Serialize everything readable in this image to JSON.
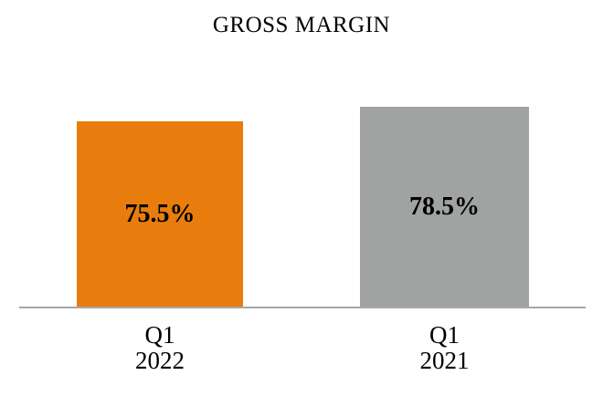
{
  "page": {
    "background": "#FFFFFF"
  },
  "chart_data": {
    "type": "bar",
    "title": "GROSS MARGIN",
    "categories": [
      "Q1 2022",
      "Q1 2021"
    ],
    "values": [
      75.5,
      78.5
    ],
    "value_labels": [
      "75.5%",
      "78.5%"
    ],
    "bars": [
      {
        "period": "Q1",
        "year": "2022",
        "value": 75.5,
        "label": "75.5%",
        "color": "#E87D0E"
      },
      {
        "period": "Q1",
        "year": "2021",
        "value": 78.5,
        "label": "78.5%",
        "color": "#A1A3A3"
      }
    ],
    "colors": {
      "bar_2022": "#E87D0E",
      "bar_2021": "#A1A3A3",
      "axis_line": "#A6A6A6",
      "text": "#000000"
    },
    "layout": {
      "legend": false,
      "gridlines": false,
      "y_axis_visible": false,
      "x_axis_line_visible": true,
      "value_label_position": "center-of-bar"
    }
  }
}
